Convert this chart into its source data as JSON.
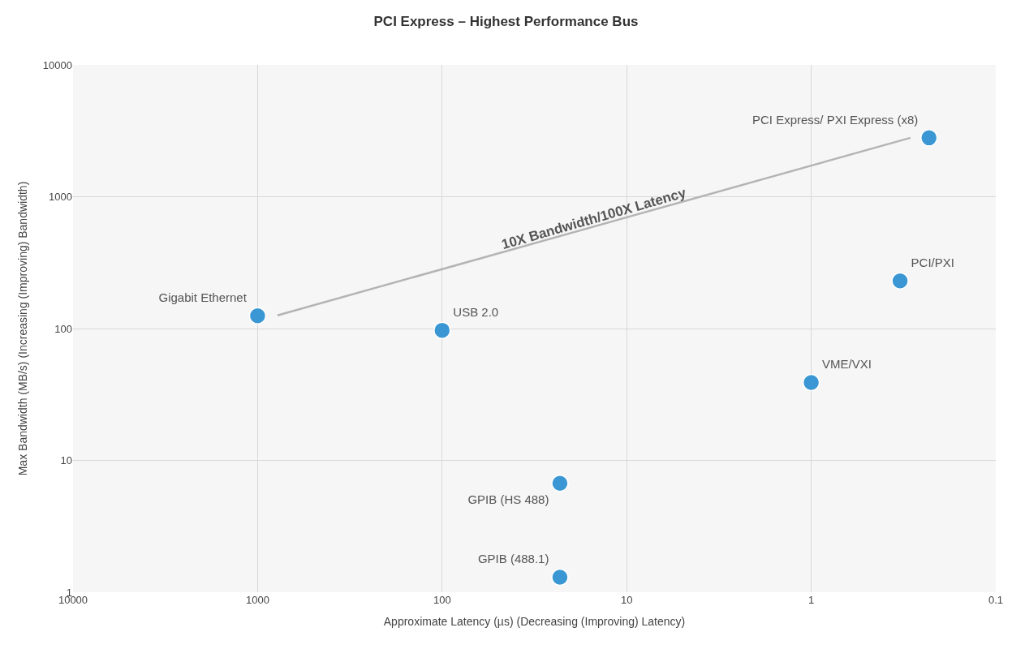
{
  "chart_data": {
    "type": "scatter",
    "title": "PCI Express – Highest Performance Bus",
    "xlabel": "Approximate Latency (µs) (Decreasing (Improving) Latency)",
    "ylabel": "Max Bandwidth (MB/s) (Increasing (Improving) Bandwidth)",
    "log": "xy",
    "grid": true,
    "legend": false,
    "marker": "circle",
    "xlim": [
      10000,
      0.1
    ],
    "xticks": [
      10000,
      1000,
      100,
      10,
      1,
      0.1
    ],
    "ylim": [
      1,
      10000
    ],
    "yticks": [
      1,
      10,
      100,
      1000,
      10000
    ],
    "series": [
      {
        "name": "Gigabit Ethernet",
        "color": "#3a97d4",
        "x": [
          1000
        ],
        "values": [
          125
        ]
      },
      {
        "name": "USB 2.0",
        "color": "#3a97d4",
        "x": [
          100
        ],
        "values": [
          97
        ]
      },
      {
        "name": "GPIB (HS 488)",
        "color": "#3a97d4",
        "x": [
          23
        ],
        "values": [
          6.7
        ]
      },
      {
        "name": "GPIB (488.1)",
        "color": "#3a97d4",
        "x": [
          23
        ],
        "values": [
          1.3
        ]
      },
      {
        "name": "VME/VXI",
        "color": "#3a97d4",
        "x": [
          1
        ],
        "values": [
          39
        ]
      },
      {
        "name": "PCI/PXI",
        "color": "#3a97d4",
        "x": [
          0.33
        ],
        "values": [
          230
        ]
      },
      {
        "name": "PCI Express/ PXI Express (x8)",
        "color": "#3a97d4",
        "x": [
          0.23
        ],
        "values": [
          2800
        ]
      },
      {
        "type": "line",
        "color": "#b4b4b4",
        "marker": "none",
        "x": [
          780,
          0.29
        ],
        "values": [
          126,
          2800
        ]
      }
    ],
    "annotations": [
      {
        "text": "10X Bandwidth/100X Latency",
        "x": 15,
        "y": 560
      }
    ]
  }
}
